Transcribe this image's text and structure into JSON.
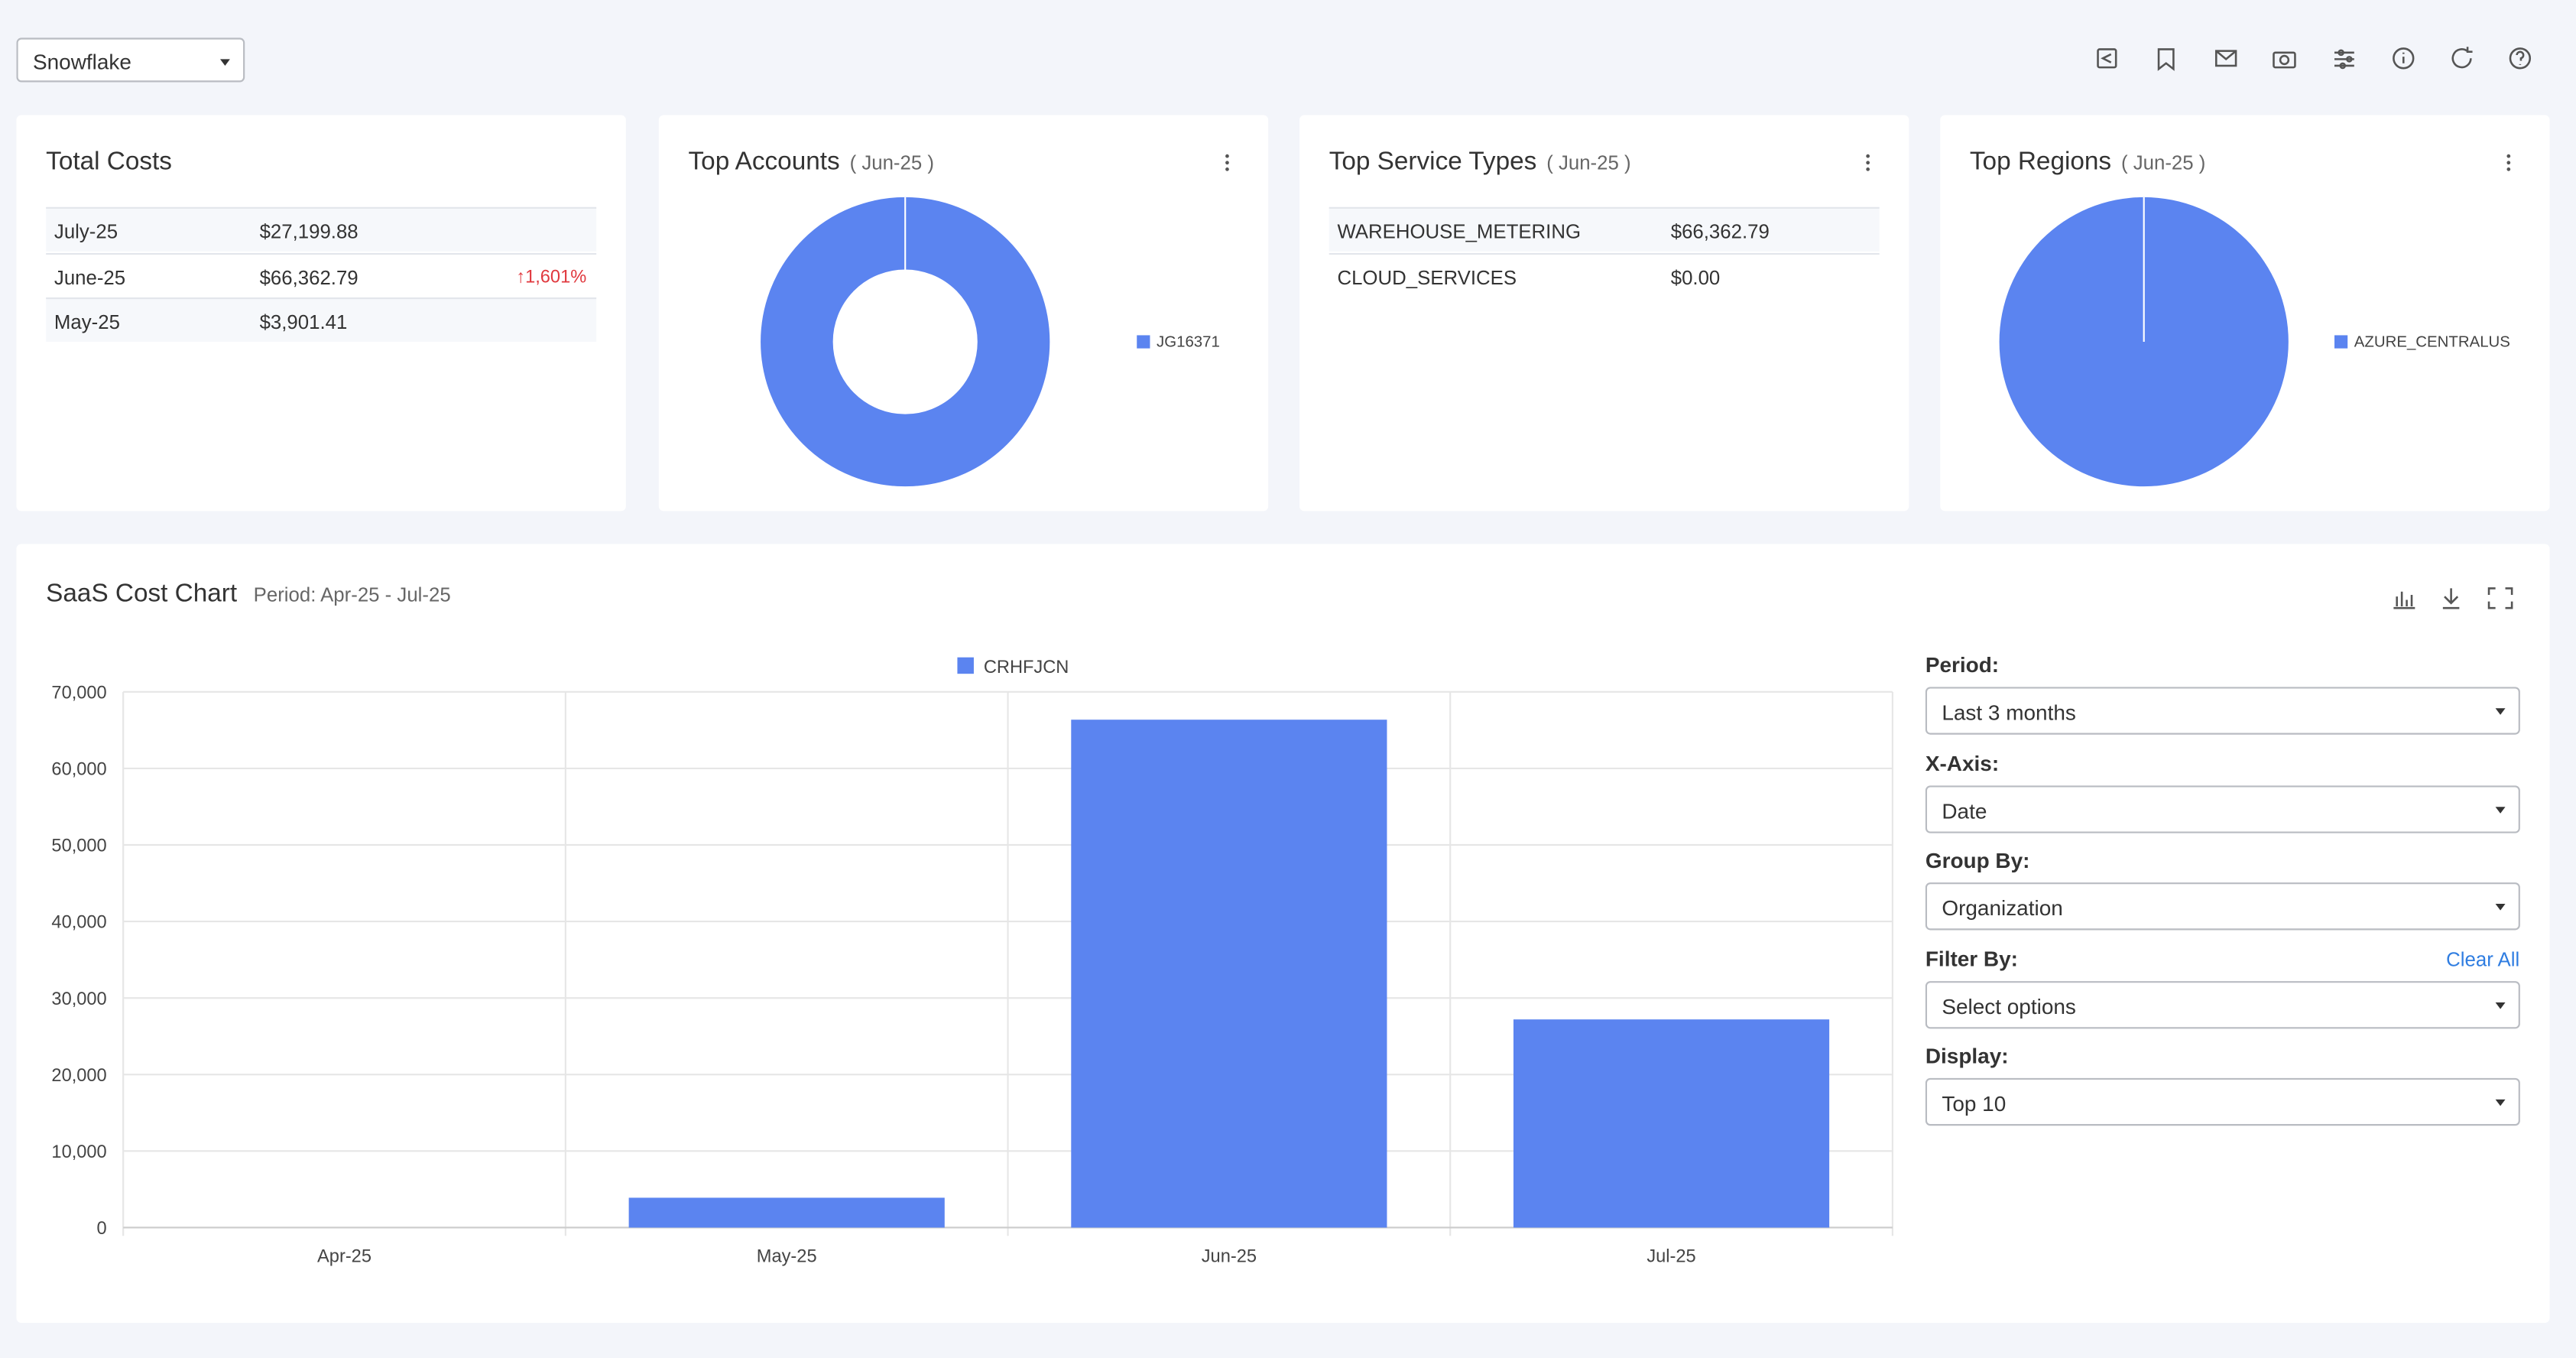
{
  "toolbar": {
    "source": "Snowflake"
  },
  "cards": {
    "total_costs": {
      "title": "Total Costs",
      "rows": [
        {
          "label": "July-25",
          "value": "$27,199.88"
        },
        {
          "label": "June-25",
          "value": "$66,362.79",
          "change": "↑1,601%"
        },
        {
          "label": "May-25",
          "value": "$3,901.41"
        }
      ]
    },
    "top_service_types": {
      "title": "Top Service Types",
      "period": "( Jun-25 )",
      "rows": [
        [
          "WAREHOUSE_METERING",
          "$66,362.79"
        ],
        [
          "CLOUD_SERVICES",
          "$0.00"
        ]
      ]
    }
  },
  "chart_data": [
    {
      "type": "pie",
      "title": "Top Accounts",
      "subtitle": "( Jun-25 )",
      "hole": 0.5,
      "categories": [
        "JG16371"
      ],
      "values": [
        100
      ],
      "colors": [
        "#5b84f0"
      ]
    },
    {
      "type": "pie",
      "title": "Top Regions",
      "subtitle": "( Jun-25 )",
      "hole": 0,
      "categories": [
        "AZURE_CENTRALUS"
      ],
      "values": [
        100
      ],
      "colors": [
        "#5b84f0"
      ]
    },
    {
      "type": "bar",
      "title": "SaaS Cost Chart",
      "subtitle": "Period: Apr-25 - Jul-25",
      "categories": [
        "Apr-25",
        "May-25",
        "Jun-25",
        "Jul-25"
      ],
      "series": [
        {
          "name": "CRHFJCN",
          "color": "#5b84f0",
          "values": [
            0,
            3901.41,
            66362.79,
            27199.88
          ]
        }
      ],
      "ylim": [
        0,
        70000
      ],
      "yticks": [
        0,
        {
          "value": 10000,
          "label": "10,000"
        },
        {
          "value": 20000,
          "label": "20,000"
        },
        {
          "value": 30000,
          "label": "30,000"
        },
        {
          "value": 40000,
          "label": "40,000"
        },
        {
          "value": 50000,
          "label": "50,000"
        },
        {
          "value": 60000,
          "label": "60,000"
        },
        {
          "value": 70000,
          "label": "70,000"
        }
      ],
      "grid": true
    }
  ],
  "controls": {
    "period": {
      "label": "Period:",
      "value": "Last 3 months"
    },
    "x_axis": {
      "label": "X-Axis:",
      "value": "Date"
    },
    "group_by": {
      "label": "Group By:",
      "value": "Organization"
    },
    "filter_by": {
      "label": "Filter By:",
      "value": "Select options",
      "action": "Clear All"
    },
    "display": {
      "label": "Display:",
      "value": "Top 10"
    }
  }
}
